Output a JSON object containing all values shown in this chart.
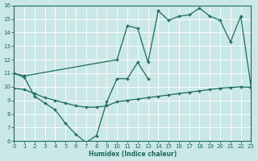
{
  "background_color": "#cbe8e8",
  "grid_color": "#b0d8d0",
  "line_color": "#1a6b5a",
  "xlabel": "Humidex (Indice chaleur)",
  "ylim": [
    6,
    16
  ],
  "xlim": [
    0,
    23
  ],
  "yticks": [
    6,
    7,
    8,
    9,
    10,
    11,
    12,
    13,
    14,
    15,
    16
  ],
  "xticks": [
    0,
    1,
    2,
    3,
    4,
    5,
    6,
    7,
    8,
    9,
    10,
    11,
    12,
    13,
    14,
    15,
    16,
    17,
    18,
    19,
    20,
    21,
    22,
    23
  ],
  "series1_x": [
    0,
    1,
    2,
    3,
    4,
    5,
    6,
    7,
    8,
    9,
    10,
    11,
    12,
    13
  ],
  "series1_y": [
    11.0,
    10.7,
    9.3,
    8.8,
    8.3,
    7.3,
    6.5,
    5.9,
    6.4,
    8.9,
    10.6,
    10.6,
    11.8,
    10.6
  ],
  "series2_x": [
    0,
    1,
    10,
    11,
    12,
    13,
    14,
    15,
    16,
    17,
    18,
    19,
    20,
    21,
    22,
    23
  ],
  "series2_y": [
    11.0,
    10.8,
    12.0,
    14.5,
    14.3,
    11.8,
    15.6,
    14.9,
    15.2,
    15.3,
    15.8,
    15.2,
    14.9,
    13.3,
    15.2,
    10.0
  ],
  "series3_x": [
    0,
    1,
    2,
    3,
    4,
    5,
    6,
    7,
    8,
    9,
    10,
    11,
    12,
    13,
    14,
    15,
    16,
    17,
    18,
    19,
    20,
    21,
    22,
    23
  ],
  "series3_y": [
    9.9,
    9.8,
    9.5,
    9.2,
    9.0,
    8.8,
    8.6,
    8.5,
    8.5,
    8.6,
    8.9,
    9.0,
    9.1,
    9.2,
    9.3,
    9.4,
    9.5,
    9.6,
    9.7,
    9.8,
    9.9,
    9.95,
    10.0,
    9.95
  ]
}
